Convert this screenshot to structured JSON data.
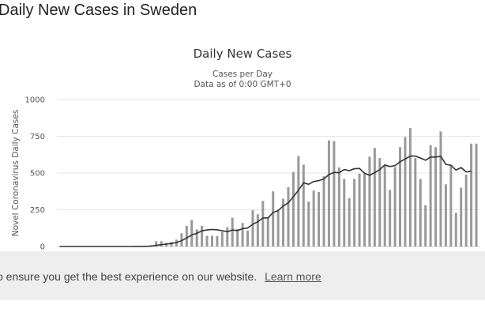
{
  "page": {
    "title": "Daily New Cases in Sweden"
  },
  "banner": {
    "text": "o ensure you get the best experience on our website.",
    "link": "Learn more"
  },
  "chart_data": {
    "type": "bar",
    "title": "Daily New Cases",
    "subtitle": "Cases per Day",
    "note": "Data as of 0:00 GMT+0",
    "ylabel": "Novel Coronavirus Daily Cases",
    "ylim": [
      0,
      1000
    ],
    "yticks": [
      "0",
      "250",
      "500",
      "750",
      "1000"
    ],
    "grid": true,
    "bar_color": "#999999",
    "line_color": "#333333",
    "values": [
      0,
      0,
      0,
      0,
      0,
      0,
      0,
      0,
      0,
      0,
      0,
      0,
      0,
      0,
      1,
      1,
      2,
      3,
      9,
      36,
      36,
      25,
      32,
      47,
      90,
      140,
      181,
      116,
      140,
      73,
      73,
      70,
      100,
      131,
      195,
      118,
      160,
      108,
      247,
      219,
      310,
      200,
      375,
      250,
      325,
      403,
      507,
      615,
      557,
      305,
      380,
      371,
      478,
      722,
      717,
      538,
      460,
      328,
      460,
      495,
      495,
      611,
      670,
      602,
      550,
      385,
      540,
      676,
      745,
      806,
      602,
      460,
      281,
      690,
      676,
      783,
      423,
      557,
      229,
      400,
      489,
      700,
      700
    ]
  }
}
